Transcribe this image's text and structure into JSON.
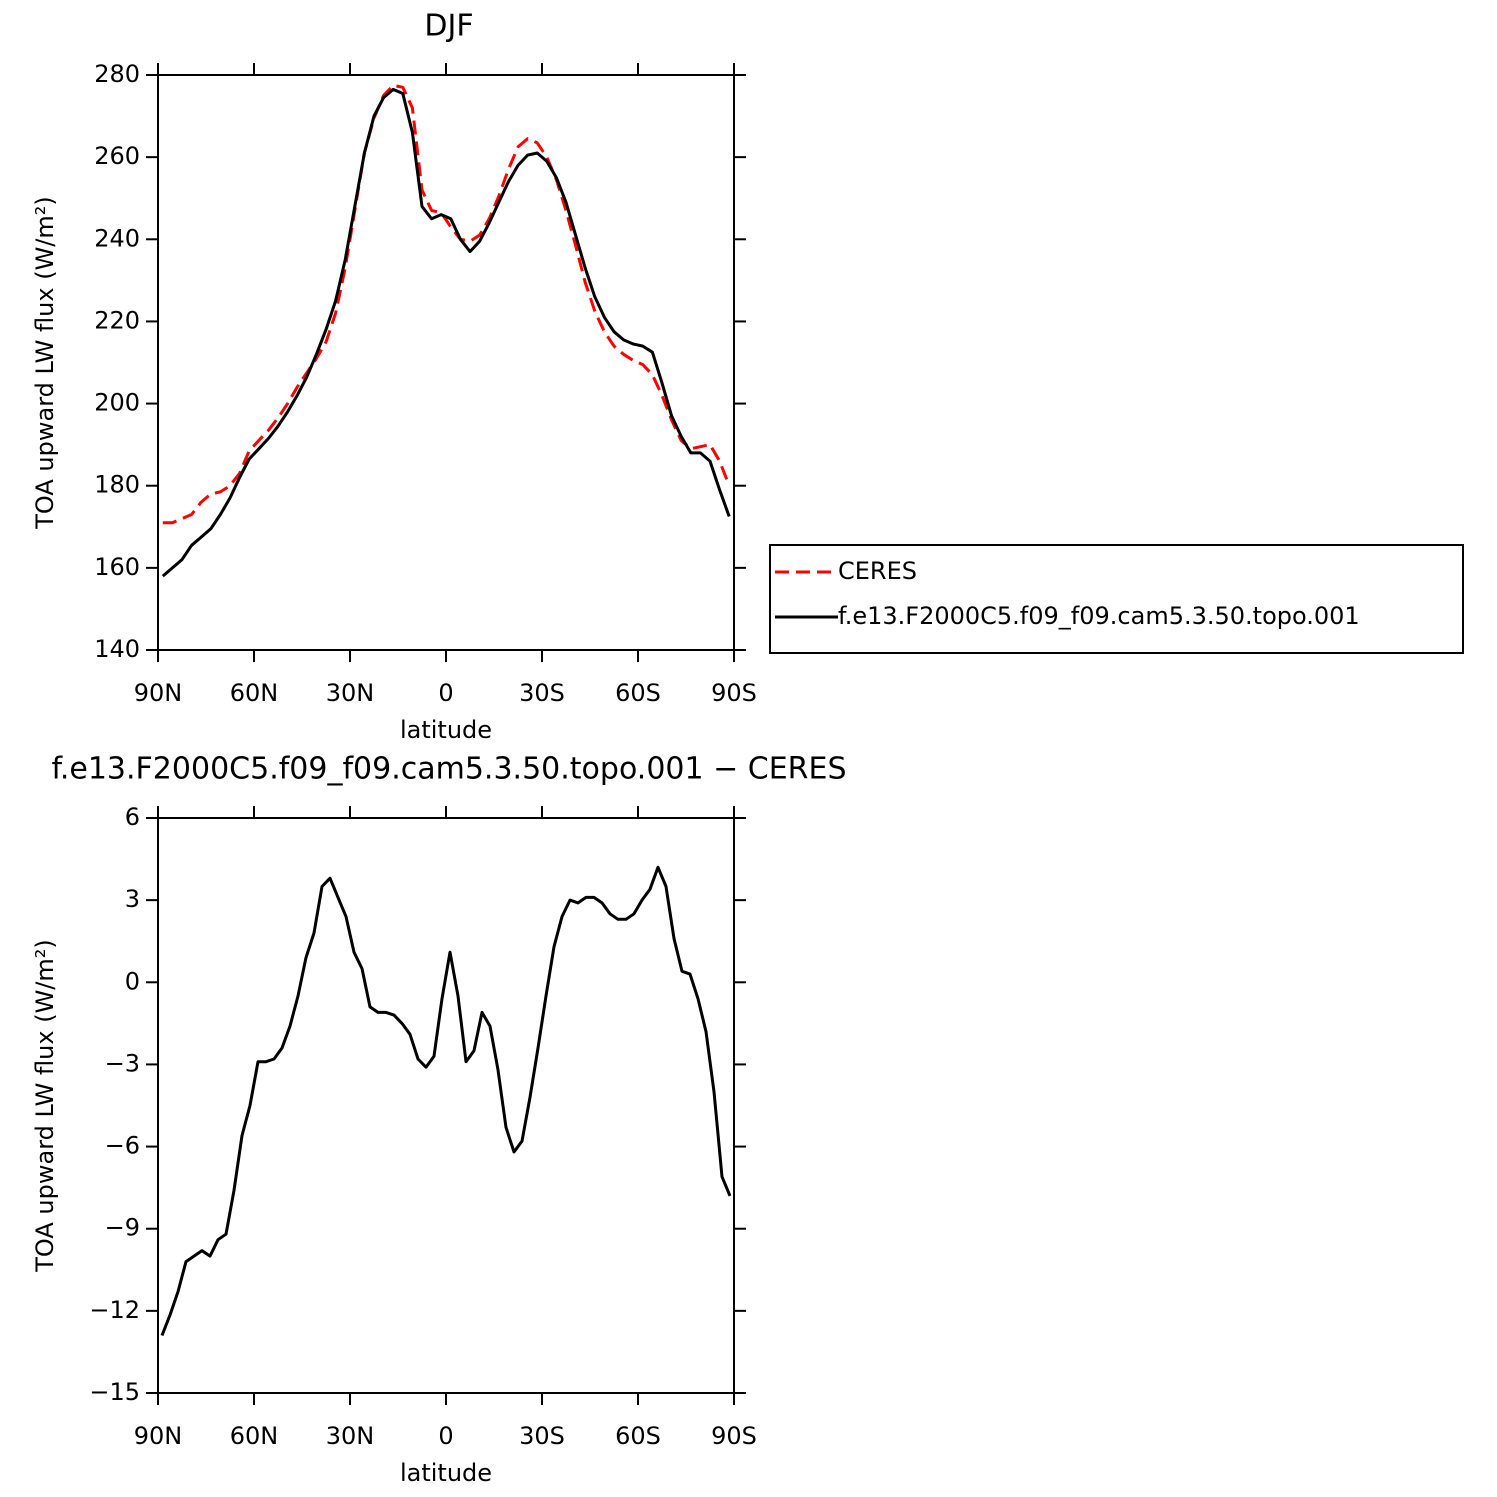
{
  "chart_data": [
    {
      "type": "line",
      "title": "DJF",
      "xlabel": "latitude",
      "ylabel": "TOA upward LW flux (W/m²)",
      "x": [
        88.5,
        85.5,
        82.5,
        79.5,
        76.5,
        73.5,
        70.5,
        67.5,
        64.5,
        61.5,
        58.5,
        55.5,
        52.5,
        49.5,
        46.5,
        43.5,
        40.5,
        37.5,
        34.5,
        31.5,
        28.5,
        25.5,
        22.5,
        19.5,
        16.5,
        13.5,
        10.5,
        7.5,
        4.5,
        1.5,
        -1.5,
        -4.5,
        -7.5,
        -10.5,
        -13.5,
        -16.5,
        -19.5,
        -22.5,
        -25.5,
        -28.5,
        -31.5,
        -34.5,
        -37.5,
        -40.5,
        -43.5,
        -46.5,
        -49.5,
        -52.5,
        -55.5,
        -58.5,
        -61.5,
        -64.5,
        -67.5,
        -70.5,
        -73.5,
        -76.5,
        -79.5,
        -82.5,
        -85.5,
        -88.5
      ],
      "series": [
        {
          "name": "CERES",
          "color": "#ff0000",
          "linestyle": "dashed",
          "values": [
            171,
            171,
            172,
            173,
            176,
            178,
            178.5,
            180,
            183,
            188.5,
            191,
            193.5,
            196.5,
            200,
            204,
            207.5,
            211,
            215,
            222,
            233,
            247,
            261,
            269.5,
            275,
            277.5,
            277,
            272,
            252,
            247,
            246.5,
            243,
            240,
            239.5,
            241,
            245,
            250.5,
            257,
            262.5,
            264.5,
            263.5,
            260,
            254.5,
            247,
            238.5,
            229.5,
            222.5,
            217.5,
            214,
            212,
            210.5,
            209.5,
            207,
            202,
            196,
            191,
            189,
            189.5,
            190,
            186,
            180
          ]
        },
        {
          "name": "f.e13.F2000C5.f09_f09.cam5.3.50.topo.001",
          "color": "#000000",
          "linestyle": "solid",
          "values": [
            158,
            160,
            162,
            165.5,
            167.5,
            169.5,
            173,
            177,
            182,
            186.5,
            189,
            191.5,
            194.5,
            198,
            202,
            206.5,
            212,
            218,
            225,
            235,
            248,
            261,
            270,
            274.5,
            276.5,
            275.5,
            266,
            248,
            245,
            246,
            245,
            240,
            237,
            239.5,
            244,
            249,
            254,
            258,
            260.5,
            261,
            259,
            255,
            249,
            241,
            233,
            226,
            221,
            217.5,
            215.5,
            214.5,
            214,
            212.5,
            205,
            197,
            192,
            188,
            188,
            186,
            179,
            172.5
          ]
        }
      ],
      "xlim": [
        90,
        -90
      ],
      "xticks": [
        {
          "value": 90,
          "label": "90N"
        },
        {
          "value": 60,
          "label": "60N"
        },
        {
          "value": 30,
          "label": "30N"
        },
        0,
        {
          "value": -30,
          "label": "30S"
        },
        {
          "value": -60,
          "label": "60S"
        },
        {
          "value": -90,
          "label": "90S"
        }
      ],
      "ylim": [
        140,
        280
      ],
      "yticks": [
        140,
        160,
        180,
        200,
        220,
        240,
        260,
        280
      ],
      "legend": "right"
    },
    {
      "type": "line",
      "title": "f.e13.F2000C5.f09_f09.cam5.3.50.topo.001 − CERES",
      "xlabel": "latitude",
      "ylabel": "TOA upward LW flux (W/m²)",
      "x": [
        88.75,
        86.25,
        83.75,
        81.25,
        78.75,
        76.25,
        73.75,
        71.25,
        68.75,
        66.25,
        63.75,
        61.25,
        58.75,
        56.25,
        53.75,
        51.25,
        48.75,
        46.25,
        43.75,
        41.25,
        38.75,
        36.25,
        33.75,
        31.25,
        28.75,
        26.25,
        23.75,
        21.25,
        18.75,
        16.25,
        13.75,
        11.25,
        8.75,
        6.25,
        3.75,
        1.25,
        -1.25,
        -3.75,
        -6.25,
        -8.75,
        -11.25,
        -13.75,
        -16.25,
        -18.75,
        -21.25,
        -23.75,
        -26.25,
        -28.75,
        -31.25,
        -33.75,
        -36.25,
        -38.75,
        -41.25,
        -43.75,
        -46.25,
        -48.75,
        -51.25,
        -53.75,
        -56.25,
        -58.75,
        -61.25,
        -63.75,
        -66.25,
        -68.75,
        -71.25,
        -73.75,
        -76.25,
        -78.75,
        -81.25,
        -83.75,
        -86.25,
        -88.75
      ],
      "values": [
        -12.9,
        -12.15,
        -11.3,
        -10.2,
        -10.0,
        -9.8,
        -10.0,
        -9.4,
        -9.2,
        -7.6,
        -5.6,
        -4.5,
        -2.9,
        -2.9,
        -2.8,
        -2.4,
        -1.6,
        -0.5,
        0.9,
        1.8,
        3.5,
        3.8,
        3.1,
        2.4,
        1.1,
        0.5,
        -0.9,
        -1.1,
        -1.1,
        -1.2,
        -1.5,
        -1.9,
        -2.8,
        -3.1,
        -2.7,
        -0.6,
        1.1,
        -0.5,
        -2.9,
        -2.5,
        -1.1,
        -1.6,
        -3.2,
        -5.3,
        -6.2,
        -5.8,
        -4.2,
        -2.4,
        -0.5,
        1.3,
        2.4,
        3.0,
        2.9,
        3.1,
        3.1,
        2.9,
        2.5,
        2.3,
        2.3,
        2.5,
        3.0,
        3.4,
        4.2,
        3.5,
        1.6,
        0.4,
        0.3,
        -0.6,
        -1.8,
        -4.0,
        -7.1,
        -7.8
      ],
      "color": "#000000",
      "linestyle": "solid",
      "xlim": [
        90,
        -90
      ],
      "xticks": [
        {
          "value": 90,
          "label": "90N"
        },
        {
          "value": 60,
          "label": "60N"
        },
        {
          "value": 30,
          "label": "30N"
        },
        0,
        {
          "value": -30,
          "label": "30S"
        },
        {
          "value": -60,
          "label": "60S"
        },
        {
          "value": -90,
          "label": "90S"
        }
      ],
      "ylim": [
        -15,
        6
      ],
      "yticks": [
        {
          "value": -15,
          "label": "−15"
        },
        {
          "value": -12,
          "label": "−12"
        },
        {
          "value": -9,
          "label": "−9"
        },
        {
          "value": -6,
          "label": "−6"
        },
        {
          "value": -3,
          "label": "−3"
        },
        0,
        3,
        6
      ]
    }
  ]
}
